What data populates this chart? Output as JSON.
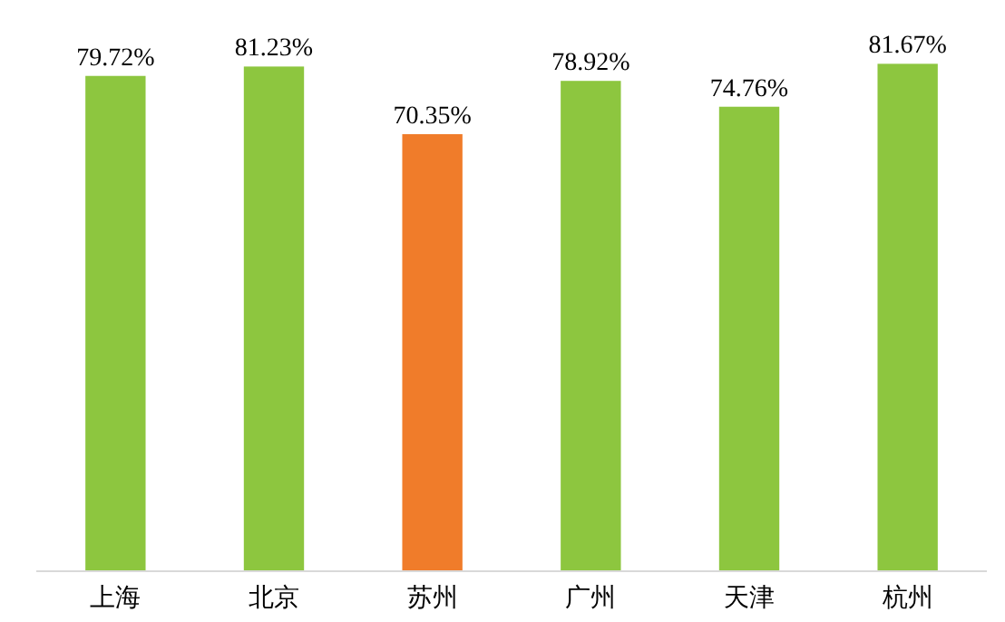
{
  "chart_data": {
    "type": "bar",
    "categories": [
      "上海",
      "北京",
      "苏州",
      "广州",
      "天津",
      "杭州"
    ],
    "values": [
      79.72,
      81.23,
      70.35,
      78.92,
      74.76,
      81.67
    ],
    "colors": [
      "#8dc63f",
      "#8dc63f",
      "#f07c2a",
      "#8dc63f",
      "#8dc63f",
      "#8dc63f"
    ],
    "value_labels": [
      "79.72%",
      "81.23%",
      "70.35%",
      "78.92%",
      "74.76%",
      "81.67%"
    ]
  }
}
